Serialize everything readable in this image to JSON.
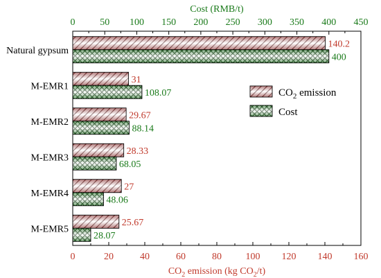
{
  "chart_data": {
    "type": "bar",
    "orientation": "horizontal",
    "categories": [
      "Natural gypsum",
      "M-EMR1",
      "M-EMR2",
      "M-EMR3",
      "M-EMR4",
      "M-EMR5"
    ],
    "series": [
      {
        "name_main": "CO",
        "name_sub": "2",
        "name_tail": " emission",
        "values": [
          140.2,
          31,
          29.67,
          28.33,
          27,
          25.67
        ],
        "labels": [
          "140.2",
          "31",
          "29.67",
          "28.33",
          "27",
          "25.67"
        ],
        "axis": "bottom",
        "color": "#b52a2a",
        "label_color": "#c0392b",
        "pattern": "diagonal-hatch"
      },
      {
        "name_main": "Cost",
        "values": [
          400,
          108.07,
          88.14,
          68.05,
          48.06,
          28.07
        ],
        "labels": [
          "400",
          "108.07",
          "88.14",
          "68.05",
          "48.06",
          "28.07"
        ],
        "axis": "top",
        "color": "#1a7a1a",
        "label_color": "#1a7a1a",
        "pattern": "cross-hatch"
      }
    ],
    "x_bottom": {
      "label_parts": [
        "CO",
        "2",
        " emission (kg CO",
        "2",
        "/t)"
      ],
      "range": [
        0,
        160
      ],
      "ticks": [
        "0",
        "20",
        "40",
        "60",
        "80",
        "100",
        "120",
        "140",
        "160"
      ],
      "color": "#c0392b"
    },
    "x_top": {
      "label": "Cost (RMB/t)",
      "range": [
        0,
        450
      ],
      "ticks": [
        "0",
        "50",
        "100",
        "150",
        "200",
        "250",
        "300",
        "350",
        "400",
        "450"
      ],
      "color": "#1a7a1a"
    },
    "legend_position": "right-middle",
    "grid": false
  }
}
